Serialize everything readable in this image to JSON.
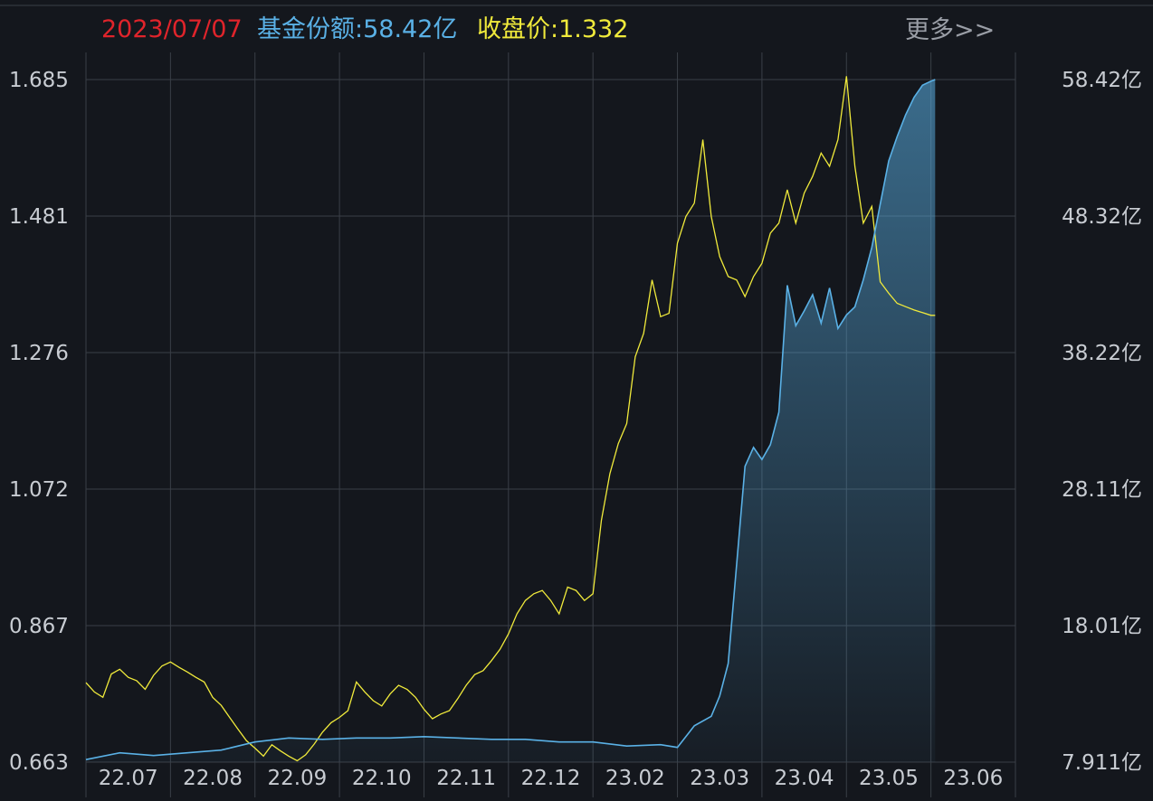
{
  "header": {
    "date": "2023/07/07",
    "share_label": "基金份额:58.42亿",
    "price_label": "收盘价:1.332",
    "more_label": "更多>>"
  },
  "colors": {
    "background": "#14171d",
    "grid": "#3a3f47",
    "date": "#e0242b",
    "share": "#5ab1e6",
    "price": "#f0ea3b",
    "more": "#9a9ea6",
    "tick": "#c8ccd2"
  },
  "chart_data": {
    "type": "line",
    "title": "",
    "x_ticks": [
      "22.07",
      "22.08",
      "22.09",
      "22.10",
      "22.11",
      "22.12",
      "23.02",
      "23.03",
      "23.04",
      "23.05",
      "23.06"
    ],
    "y_left": {
      "ticks": [
        "1.685",
        "1.481",
        "1.276",
        "1.072",
        "0.867",
        "0.663"
      ],
      "range": [
        0.663,
        1.685
      ]
    },
    "y_right": {
      "ticks": [
        "58.42亿",
        "48.32亿",
        "38.22亿",
        "28.11亿",
        "18.01亿",
        "7.911亿"
      ],
      "range": [
        7.911,
        58.42
      ],
      "unit": "亿"
    },
    "grid": true,
    "series": [
      {
        "name": "收盘价",
        "axis": "left",
        "x": [
          0,
          0.1,
          0.2,
          0.3,
          0.4,
          0.5,
          0.6,
          0.7,
          0.8,
          0.9,
          1.0,
          1.1,
          1.2,
          1.3,
          1.4,
          1.5,
          1.6,
          1.7,
          1.8,
          1.9,
          2.0,
          2.1,
          2.2,
          2.3,
          2.4,
          2.5,
          2.6,
          2.7,
          2.8,
          2.9,
          3.0,
          3.1,
          3.2,
          3.3,
          3.4,
          3.5,
          3.6,
          3.7,
          3.8,
          3.9,
          4.0,
          4.1,
          4.2,
          4.3,
          4.4,
          4.5,
          4.6,
          4.7,
          4.8,
          4.9,
          5.0,
          5.1,
          5.2,
          5.3,
          5.4,
          5.5,
          5.6,
          5.7,
          5.8,
          5.9,
          6.0,
          6.1,
          6.2,
          6.3,
          6.4,
          6.5,
          6.6,
          6.7,
          6.8,
          6.9,
          7.0,
          7.1,
          7.2,
          7.3,
          7.4,
          7.5,
          7.6,
          7.7,
          7.8,
          7.9,
          8.0,
          8.1,
          8.2,
          8.3,
          8.4,
          8.5,
          8.6,
          8.7,
          8.8,
          8.9,
          9.0,
          9.1,
          9.2,
          9.3,
          9.4,
          9.5,
          9.6,
          9.7,
          9.8,
          9.9,
          10.0,
          10.05
        ],
        "values": [
          0.782,
          0.768,
          0.76,
          0.795,
          0.802,
          0.79,
          0.785,
          0.772,
          0.793,
          0.807,
          0.813,
          0.805,
          0.798,
          0.79,
          0.783,
          0.76,
          0.748,
          0.73,
          0.712,
          0.695,
          0.684,
          0.672,
          0.689,
          0.68,
          0.672,
          0.665,
          0.674,
          0.69,
          0.708,
          0.722,
          0.73,
          0.74,
          0.783,
          0.768,
          0.755,
          0.747,
          0.765,
          0.778,
          0.772,
          0.76,
          0.742,
          0.728,
          0.735,
          0.74,
          0.758,
          0.778,
          0.794,
          0.8,
          0.815,
          0.832,
          0.855,
          0.885,
          0.905,
          0.915,
          0.92,
          0.905,
          0.885,
          0.925,
          0.92,
          0.905,
          0.915,
          1.025,
          1.095,
          1.14,
          1.17,
          1.27,
          1.305,
          1.385,
          1.33,
          1.335,
          1.44,
          1.48,
          1.5,
          1.595,
          1.48,
          1.42,
          1.39,
          1.385,
          1.36,
          1.39,
          1.41,
          1.455,
          1.47,
          1.52,
          1.47,
          1.515,
          1.54,
          1.575,
          1.555,
          1.595,
          1.69,
          1.555,
          1.47,
          1.495,
          1.382,
          1.365,
          1.35,
          1.345,
          1.34,
          1.336,
          1.332,
          1.332
        ]
      },
      {
        "name": "基金份额",
        "axis": "right",
        "x": [
          0,
          0.4,
          0.8,
          1.2,
          1.6,
          2.0,
          2.4,
          2.8,
          3.2,
          3.6,
          4.0,
          4.4,
          4.8,
          5.2,
          5.6,
          6.0,
          6.4,
          6.8,
          7.0,
          7.2,
          7.4,
          7.5,
          7.6,
          7.7,
          7.8,
          7.9,
          8.0,
          8.1,
          8.2,
          8.3,
          8.4,
          8.5,
          8.6,
          8.7,
          8.8,
          8.9,
          9.0,
          9.1,
          9.2,
          9.3,
          9.4,
          9.5,
          9.6,
          9.7,
          9.8,
          9.9,
          10.0,
          10.05
        ],
        "values": [
          8.1,
          8.6,
          8.4,
          8.6,
          8.8,
          9.4,
          9.7,
          9.6,
          9.7,
          9.7,
          9.8,
          9.7,
          9.6,
          9.6,
          9.4,
          9.4,
          9.1,
          9.2,
          9.0,
          10.6,
          11.3,
          12.8,
          15.2,
          22.5,
          29.8,
          31.2,
          30.3,
          31.4,
          33.8,
          43.2,
          40.2,
          41.3,
          42.5,
          40.4,
          43.0,
          40.0,
          41.0,
          41.6,
          43.6,
          46.0,
          49.2,
          52.4,
          54.2,
          55.8,
          57.1,
          58.0,
          58.3,
          58.42
        ]
      }
    ]
  }
}
